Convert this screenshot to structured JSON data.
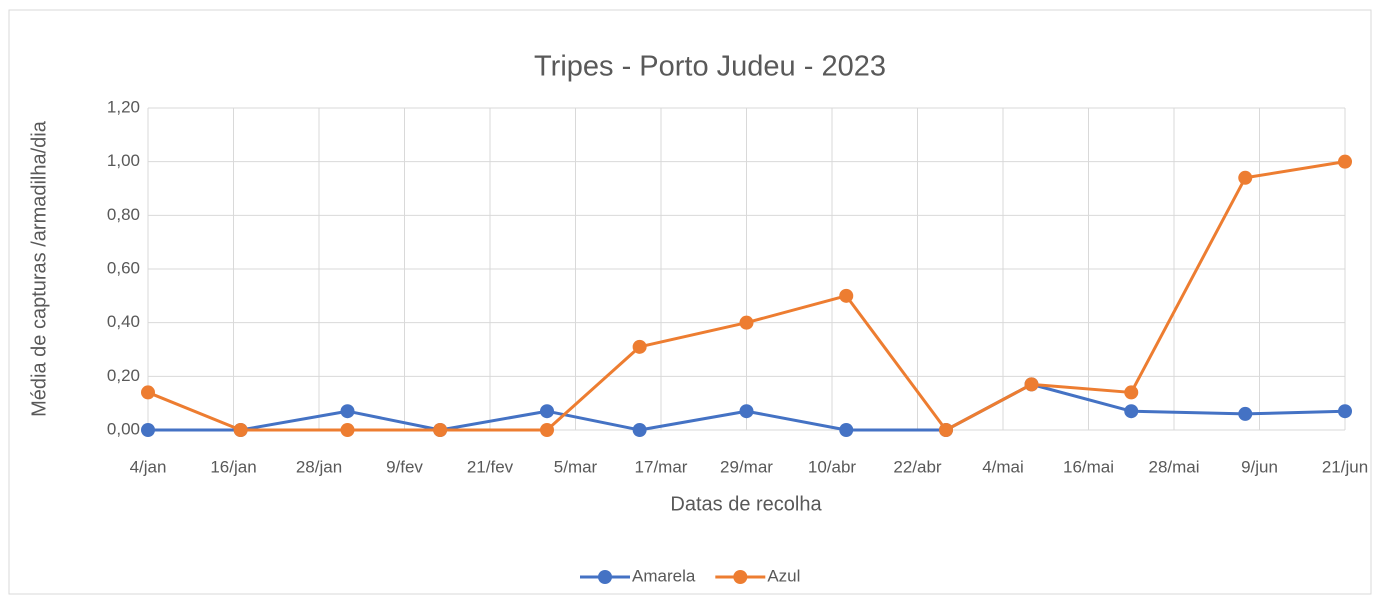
{
  "chart_data": {
    "type": "line",
    "title": "Tripes - Porto Judeu - 2023",
    "x_label": "Datas de recolha",
    "y_label": "Média de capturas /armadilha/dia",
    "x": [
      4,
      17,
      32,
      45,
      60,
      73,
      88,
      102,
      116,
      128,
      142,
      158,
      172
    ],
    "series": [
      {
        "name": "Amarela",
        "color": "#4472c4",
        "values": [
          0,
          0,
          0.07,
          0,
          0.07,
          0,
          0.07,
          0,
          0,
          0.17,
          0.07,
          0.06,
          0.07
        ]
      },
      {
        "name": "Azul",
        "color": "#ed7d31",
        "values": [
          0.14,
          0,
          0,
          0,
          0,
          0.31,
          0.4,
          0.5,
          0,
          0.17,
          0.14,
          0.94,
          1.0
        ]
      }
    ],
    "xlim": [
      4,
      172
    ],
    "xticks": [
      {
        "value": 4,
        "label": "4/jan"
      },
      {
        "value": 16,
        "label": "16/jan"
      },
      {
        "value": 28,
        "label": "28/jan"
      },
      {
        "value": 40,
        "label": "9/fev"
      },
      {
        "value": 52,
        "label": "21/fev"
      },
      {
        "value": 64,
        "label": "5/mar"
      },
      {
        "value": 76,
        "label": "17/mar"
      },
      {
        "value": 88,
        "label": "29/mar"
      },
      {
        "value": 100,
        "label": "10/abr"
      },
      {
        "value": 112,
        "label": "22/abr"
      },
      {
        "value": 124,
        "label": "4/mai"
      },
      {
        "value": 136,
        "label": "16/mai"
      },
      {
        "value": 148,
        "label": "28/mai"
      },
      {
        "value": 160,
        "label": "9/jun"
      },
      {
        "value": 172,
        "label": "21/jun"
      }
    ],
    "ylim": [
      0,
      1.2
    ],
    "yticks": [
      {
        "value": 0,
        "label": "0,00"
      },
      {
        "value": 0.2,
        "label": "0,20"
      },
      {
        "value": 0.4,
        "label": "0,40"
      },
      {
        "value": 0.6,
        "label": "0,60"
      },
      {
        "value": 0.8,
        "label": "0,80"
      },
      {
        "value": 1.0,
        "label": "1,00"
      },
      {
        "value": 1.2,
        "label": "1,20"
      }
    ],
    "grid": true,
    "legend": "bottom"
  }
}
